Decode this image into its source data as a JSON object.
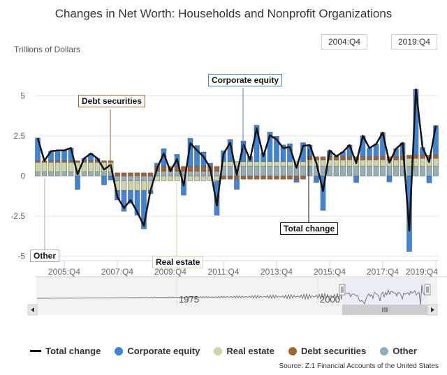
{
  "title": "Changes in Net Worth: Households and Nonprofit Organizations",
  "range_selector": {
    "from": "2004:Q4",
    "to": "2019:Q4"
  },
  "source": "Source: Z.1 Financial Accounts of the United States",
  "colors": {
    "total": "#111111",
    "equity": "#3d85d8",
    "real_estate": "#cbd5a6",
    "debt": "#a8622b",
    "other": "#93b0b8"
  },
  "callouts": {
    "equity": "Corporate equity",
    "debt": "Debt securities",
    "other": "Other",
    "real_estate": "Real estate",
    "total": "Total change"
  },
  "legend": [
    {
      "label": "Total change",
      "marker": "line",
      "color": "#111111"
    },
    {
      "label": "Corporate equity",
      "marker": "circle",
      "color": "#3d85d8"
    },
    {
      "label": "Real estate",
      "marker": "circle",
      "color": "#cbd5a6"
    },
    {
      "label": "Debt securities",
      "marker": "circle",
      "color": "#a8622b"
    },
    {
      "label": "Other",
      "marker": "circle",
      "color": "#93b0b8"
    }
  ],
  "navigator": {
    "tick_labels": [
      "1975",
      "2000"
    ],
    "selected_range": [
      "2004:Q4",
      "2019:Q4"
    ]
  },
  "chart_data": {
    "type": "bar",
    "stacked": true,
    "ylabel": "Trillions of Dollars",
    "ylim": [
      -5,
      5.5
    ],
    "yticks": [
      5,
      2.5,
      0,
      -2.5,
      -5
    ],
    "ytick_labels": [
      "5",
      "2.5",
      "0",
      "-2.5",
      "-5"
    ],
    "xrange": [
      "2004:Q4",
      "2019:Q4"
    ],
    "xtick_labels": [
      "2005:Q4",
      "2007:Q4",
      "2009:Q4",
      "2011:Q4",
      "2013:Q4",
      "2015:Q4",
      "2017:Q4",
      "2019:Q4"
    ],
    "grid": true,
    "legend_position": "bottom",
    "start_quarter": "2004:Q4",
    "series": [
      {
        "name": "Total change",
        "type": "line",
        "values": [
          2.37,
          0.95,
          1.55,
          1.6,
          1.6,
          1.75,
          0.11,
          1.1,
          1.4,
          1.1,
          0.4,
          0.7,
          -1.3,
          -2.0,
          -1.5,
          -2.25,
          -3.1,
          -0.9,
          0.5,
          1.4,
          0.3,
          1.05,
          -0.6,
          2.05,
          1.6,
          1.2,
          0.5,
          -1.85,
          1.38,
          2.07,
          0.07,
          1.99,
          1.01,
          2.97,
          1.23,
          2.54,
          2.28,
          1.74,
          1.81,
          0.51,
          1.88,
          1.93,
          0.8,
          -0.94,
          1.59,
          1.23,
          1.5,
          1.93,
          0.8,
          2.51,
          1.74,
          1.99,
          2.71,
          0.83,
          1.7,
          2.07,
          -3.41,
          5.4,
          1.78,
          0.87,
          3.14
        ]
      },
      {
        "name": "Corporate equity",
        "type": "bar",
        "values": [
          1.42,
          0,
          0.6,
          0.65,
          0.65,
          0.8,
          -0.84,
          0.15,
          0.45,
          0.15,
          -0.55,
          -0.25,
          -0.6,
          -1.3,
          -0.8,
          -1.55,
          -2.4,
          -0.2,
          0.2,
          1.1,
          0,
          0.75,
          -0.9,
          1.75,
          1.3,
          0.9,
          0.2,
          -2.15,
          0.68,
          1.37,
          -0.63,
          1.29,
          0.31,
          2.27,
          0.53,
          1.84,
          1.58,
          1.04,
          1.11,
          -0.19,
          1.18,
          0.73,
          -0.4,
          -2.14,
          0.39,
          0.03,
          0.3,
          0.73,
          -0.4,
          1.31,
          0.54,
          0.79,
          1.51,
          -0.37,
          0.5,
          0.87,
          -4.71,
          4.1,
          0.48,
          -0.43,
          1.84
        ]
      },
      {
        "name": "Real estate",
        "type": "bar",
        "values": [
          0.6,
          0.6,
          0.6,
          0.6,
          0.6,
          0.6,
          0.6,
          0.6,
          0.6,
          0.6,
          0.6,
          0.6,
          -0.6,
          -0.6,
          -0.6,
          -0.6,
          -0.6,
          -0.6,
          -0.3,
          -0.3,
          -0.3,
          -0.3,
          -0.3,
          -0.3,
          -0.3,
          -0.3,
          -0.3,
          -0.3,
          0.3,
          0.3,
          0.3,
          0.3,
          0.3,
          0.3,
          0.3,
          0.3,
          0.3,
          0.3,
          0.3,
          0.3,
          0.3,
          0.4,
          0.4,
          0.4,
          0.4,
          0.4,
          0.4,
          0.4,
          0.4,
          0.4,
          0.4,
          0.4,
          0.4,
          0.4,
          0.4,
          0.4,
          0.5,
          0.5,
          0.5,
          0.5,
          0.5
        ]
      },
      {
        "name": "Debt securities",
        "type": "bar",
        "values": [
          0.1,
          0.1,
          0.1,
          0.1,
          0.1,
          0.1,
          0.1,
          0.1,
          0.1,
          0.1,
          0.1,
          0.1,
          0.2,
          0.2,
          0.2,
          0.2,
          0.2,
          0.2,
          0.3,
          0.3,
          0.3,
          0.3,
          0.3,
          0.3,
          0.3,
          0.3,
          0.3,
          0.3,
          -0.2,
          -0.2,
          -0.2,
          -0.2,
          -0.2,
          -0.2,
          -0.2,
          -0.2,
          -0.2,
          -0.2,
          -0.2,
          -0.2,
          -0.2,
          0.2,
          0.2,
          0.2,
          0.2,
          0.2,
          0.2,
          0.2,
          0.2,
          0.2,
          0.2,
          0.2,
          0.2,
          0.2,
          0.2,
          0.2,
          0.2,
          0.2,
          0.2,
          0.2,
          0.2
        ]
      },
      {
        "name": "Other",
        "type": "bar",
        "values": [
          0.25,
          0.25,
          0.25,
          0.25,
          0.25,
          0.25,
          0.25,
          0.25,
          0.25,
          0.25,
          0.25,
          0.25,
          -0.3,
          -0.3,
          -0.3,
          -0.3,
          -0.3,
          -0.3,
          0.3,
          0.3,
          0.3,
          0.3,
          0.3,
          0.3,
          0.3,
          0.3,
          0.3,
          0.3,
          0.6,
          0.6,
          0.6,
          0.6,
          0.6,
          0.6,
          0.6,
          0.6,
          0.6,
          0.6,
          0.6,
          0.6,
          0.6,
          0.6,
          0.6,
          0.6,
          0.6,
          0.6,
          0.6,
          0.6,
          0.6,
          0.6,
          0.6,
          0.6,
          0.6,
          0.6,
          0.6,
          0.6,
          0.6,
          0.6,
          0.6,
          0.6,
          0.6
        ]
      }
    ]
  }
}
